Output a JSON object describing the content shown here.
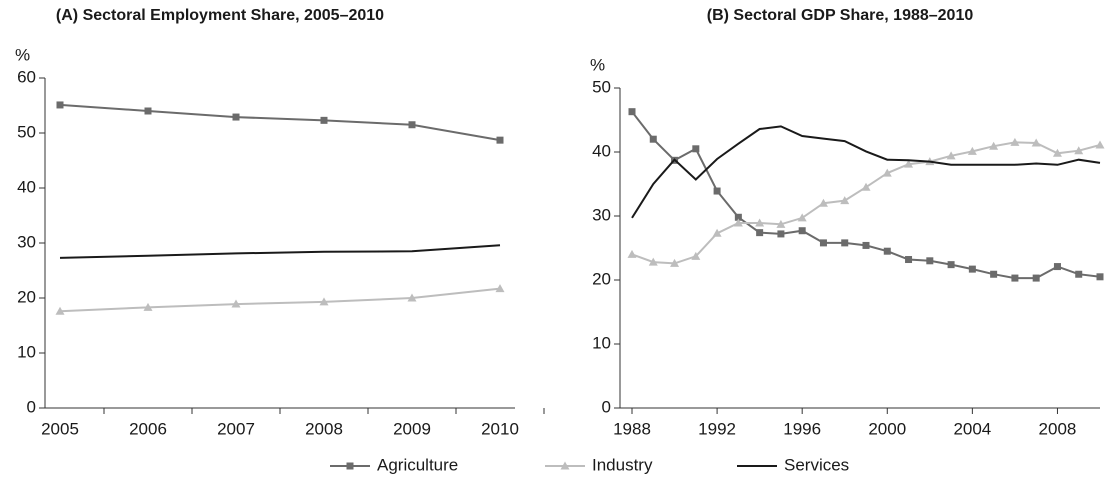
{
  "chart_data": [
    {
      "type": "line",
      "title": "(A) Sectoral Employment  Share, 2005–2010",
      "y_label": "%",
      "categories": [
        "2005",
        "2006",
        "2007",
        "2008",
        "2009",
        "2010"
      ],
      "ylim": [
        0,
        60
      ],
      "yticks": [
        0,
        10,
        20,
        30,
        40,
        50,
        60
      ],
      "grid": false,
      "series": [
        {
          "name": "Agriculture",
          "color": "#6b6b6b",
          "marker": "square",
          "values": [
            55.1,
            54.0,
            52.9,
            52.3,
            51.5,
            48.7
          ]
        },
        {
          "name": "Industry",
          "color": "#bdbdbd",
          "marker": "triangle",
          "values": [
            17.6,
            18.3,
            18.9,
            19.3,
            20.0,
            21.7
          ]
        },
        {
          "name": "Services",
          "color": "#1a1a1a",
          "marker": "none",
          "values": [
            27.3,
            27.7,
            28.1,
            28.4,
            28.5,
            29.6
          ]
        }
      ]
    },
    {
      "type": "line",
      "title": "(B) Sectoral GDP Share, 1988–2010",
      "y_label": "%",
      "x": [
        1988,
        1989,
        1990,
        1991,
        1992,
        1993,
        1994,
        1995,
        1996,
        1997,
        1998,
        1999,
        2000,
        2001,
        2002,
        2003,
        2004,
        2005,
        2006,
        2007,
        2008,
        2009,
        2010
      ],
      "xlim": [
        1988,
        2010
      ],
      "xticks": [
        1988,
        1992,
        1996,
        2000,
        2004,
        2008
      ],
      "ylim": [
        0,
        50
      ],
      "yticks": [
        0,
        10,
        20,
        30,
        40,
        50
      ],
      "grid": false,
      "series": [
        {
          "color": "#6b6b6b",
          "marker": "square",
          "values": [
            46.3,
            42.0,
            38.7,
            40.5,
            33.9,
            29.8,
            27.4,
            27.2,
            27.7,
            25.8,
            25.8,
            25.4,
            24.5,
            23.2,
            23.0,
            22.4,
            21.7,
            20.9,
            20.3,
            20.3,
            22.1,
            20.9,
            20.5
          ]
        },
        {
          "color": "#bdbdbd",
          "marker": "triangle",
          "values": [
            24.0,
            22.8,
            22.6,
            23.7,
            27.3,
            28.9,
            28.9,
            28.7,
            29.7,
            32.0,
            32.4,
            34.5,
            36.7,
            38.1,
            38.5,
            39.4,
            40.1,
            40.9,
            41.5,
            41.4,
            39.8,
            40.2,
            41.1
          ]
        },
        {
          "color": "#1a1a1a",
          "marker": "none",
          "values": [
            29.7,
            35.0,
            38.8,
            35.7,
            38.9,
            41.3,
            43.6,
            44.0,
            42.5,
            42.1,
            41.7,
            40.1,
            38.8,
            38.7,
            38.5,
            38.0,
            38.0,
            38.0,
            38.0,
            38.2,
            38.0,
            38.8,
            38.3
          ]
        }
      ]
    }
  ]
}
